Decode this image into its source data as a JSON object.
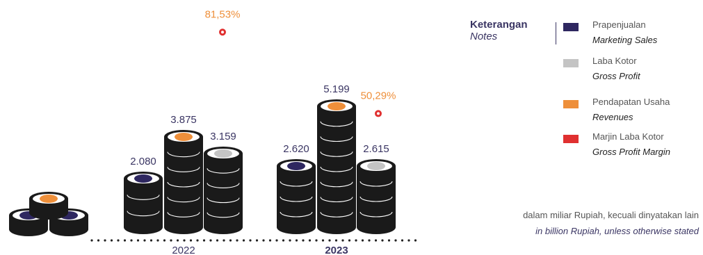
{
  "chart_data": {
    "type": "bar",
    "categories": [
      "2022",
      "2023"
    ],
    "series": [
      {
        "name": "Prapenjualan / Marketing Sales",
        "values": [
          2080,
          2620
        ],
        "labels": [
          "2.080",
          "2.620"
        ]
      },
      {
        "name": "Pendapatan Usaha / Revenues",
        "values": [
          3875,
          5199
        ],
        "labels": [
          "3.875",
          "5.199"
        ]
      },
      {
        "name": "Laba Kotor / Gross Profit",
        "values": [
          3159,
          2615
        ],
        "labels": [
          "3.159",
          "2.615"
        ]
      }
    ],
    "margin_series": {
      "name": "Marjin Laba Kotor / Gross Profit Margin",
      "values": [
        81.53,
        50.29
      ],
      "labels": [
        "81,53%",
        "50,29%"
      ]
    },
    "bold_category": "2023"
  },
  "legend": {
    "heading": {
      "id": "Keterangan",
      "en": "Notes"
    },
    "items": [
      {
        "id": "Prapenjualan",
        "en": "Marketing Sales",
        "color": "#2e2760"
      },
      {
        "id": "Laba Kotor",
        "en": "Gross Profit",
        "color": "#c4c4c4"
      },
      {
        "id": "Pendapatan Usaha",
        "en": "Revenues",
        "color": "#ee8f3a"
      },
      {
        "id": "Marjin Laba Kotor",
        "en": "Gross Profit Margin",
        "color": "#e03030"
      }
    ]
  },
  "note": {
    "id": "dalam miliar Rupiah, kecuali dinyatakan lain",
    "en": "in billion Rupiah, unless otherwise stated"
  },
  "colors": {
    "coin": "#1a1a1a",
    "coin_line": "#ffffff",
    "value_text": "#3a3563",
    "percent_text": "#ee8f3a",
    "margin_dot": "#e03030",
    "axis_dots": "#222222"
  }
}
